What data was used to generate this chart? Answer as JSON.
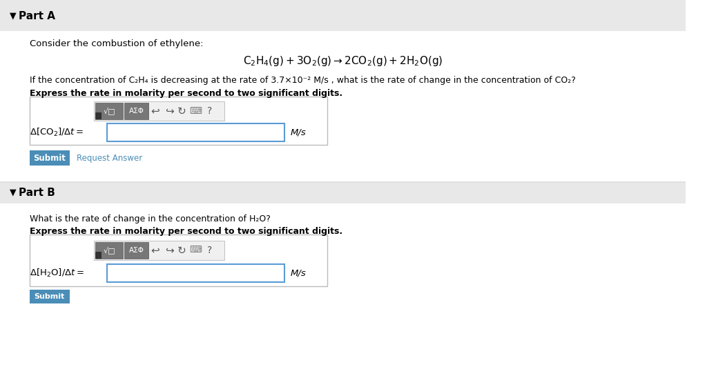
{
  "bg_color": "#f5f5f5",
  "white": "#ffffff",
  "part_a_header_bg": "#e8e8e8",
  "part_b_header_bg": "#e8e8e8",
  "equation": "C₂H₄(g) + 3O₂(g)→2CO₂(g) + 2H₂O(g)",
  "part_a_title": "Part A",
  "part_b_title": "Part B",
  "consider_text": "Consider the combustion of ethylene:",
  "question_a": "If the concentration of C₂H₄ is decreasing at the rate of 3.7×10⁻² M/s , what is the rate of change in the concentration of CO₂?",
  "bold_a": "Express the rate in molarity per second to two significant digits.",
  "label_a": "Δ[CO₂]/Δt =",
  "unit_a": "M/s",
  "question_b": "What is the rate of change in the concentration of H₂O?",
  "bold_b": "Express the rate in molarity per second to two significant digits.",
  "label_b": "Δ[H₂O]/Δt =",
  "unit_b": "M/s",
  "submit_color": "#4a8db7",
  "request_answer_color": "#4a8db7",
  "toolbar_bg": "#888888",
  "input_border": "#5b9bd5",
  "separator_color": "#cccccc"
}
